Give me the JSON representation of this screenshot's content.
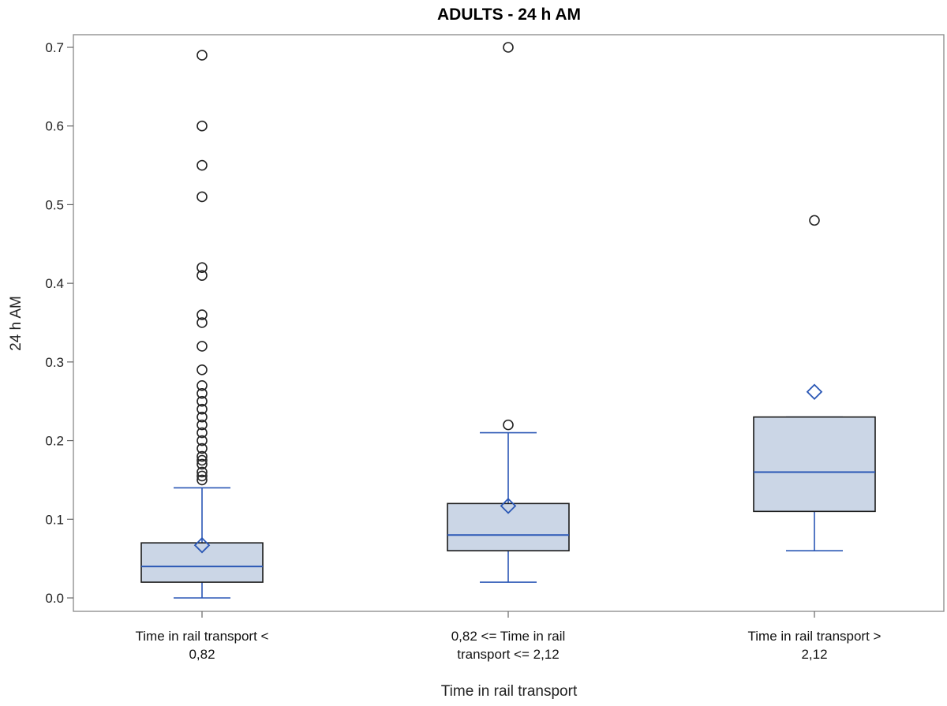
{
  "chart_data": {
    "type": "box",
    "title": "ADULTS - 24 h AM",
    "xlabel": "Time in rail transport",
    "ylabel": "24 h AM",
    "ylim": [
      -0.015,
      0.715
    ],
    "yticks": [
      0.0,
      0.1,
      0.2,
      0.3,
      0.4,
      0.5,
      0.6,
      0.7
    ],
    "ytick_labels": [
      "0.0",
      "0.1",
      "0.2",
      "0.3",
      "0.4",
      "0.5",
      "0.6",
      "0.7"
    ],
    "grid": false,
    "colors": {
      "box_fill": "#cbd6e6",
      "box_edge": "#1a1a1a",
      "median": "#2a57b5",
      "whisker": "#2a57b5",
      "mean_marker": "#2a57b5",
      "outlier": "#222222"
    },
    "groups": [
      {
        "label_lines": [
          "Time in rail transport <",
          "0,82"
        ],
        "whisker_low": 0.0,
        "q1": 0.02,
        "median": 0.04,
        "q3": 0.07,
        "whisker_high": 0.14,
        "mean": 0.067,
        "outliers": [
          0.15,
          0.155,
          0.16,
          0.17,
          0.175,
          0.18,
          0.19,
          0.2,
          0.21,
          0.22,
          0.23,
          0.24,
          0.25,
          0.26,
          0.27,
          0.29,
          0.32,
          0.35,
          0.36,
          0.41,
          0.42,
          0.51,
          0.55,
          0.6,
          0.69
        ]
      },
      {
        "label_lines": [
          "0,82 <= Time in rail",
          "transport <= 2,12"
        ],
        "whisker_low": 0.02,
        "q1": 0.06,
        "median": 0.08,
        "q3": 0.12,
        "whisker_high": 0.21,
        "mean": 0.117,
        "outliers": [
          0.22,
          0.7
        ]
      },
      {
        "label_lines": [
          "Time in rail transport >",
          "2,12"
        ],
        "whisker_low": 0.06,
        "q1": 0.11,
        "median": 0.16,
        "q3": 0.23,
        "whisker_high": 0.23,
        "mean": 0.262,
        "outliers": [
          0.48
        ]
      }
    ]
  }
}
